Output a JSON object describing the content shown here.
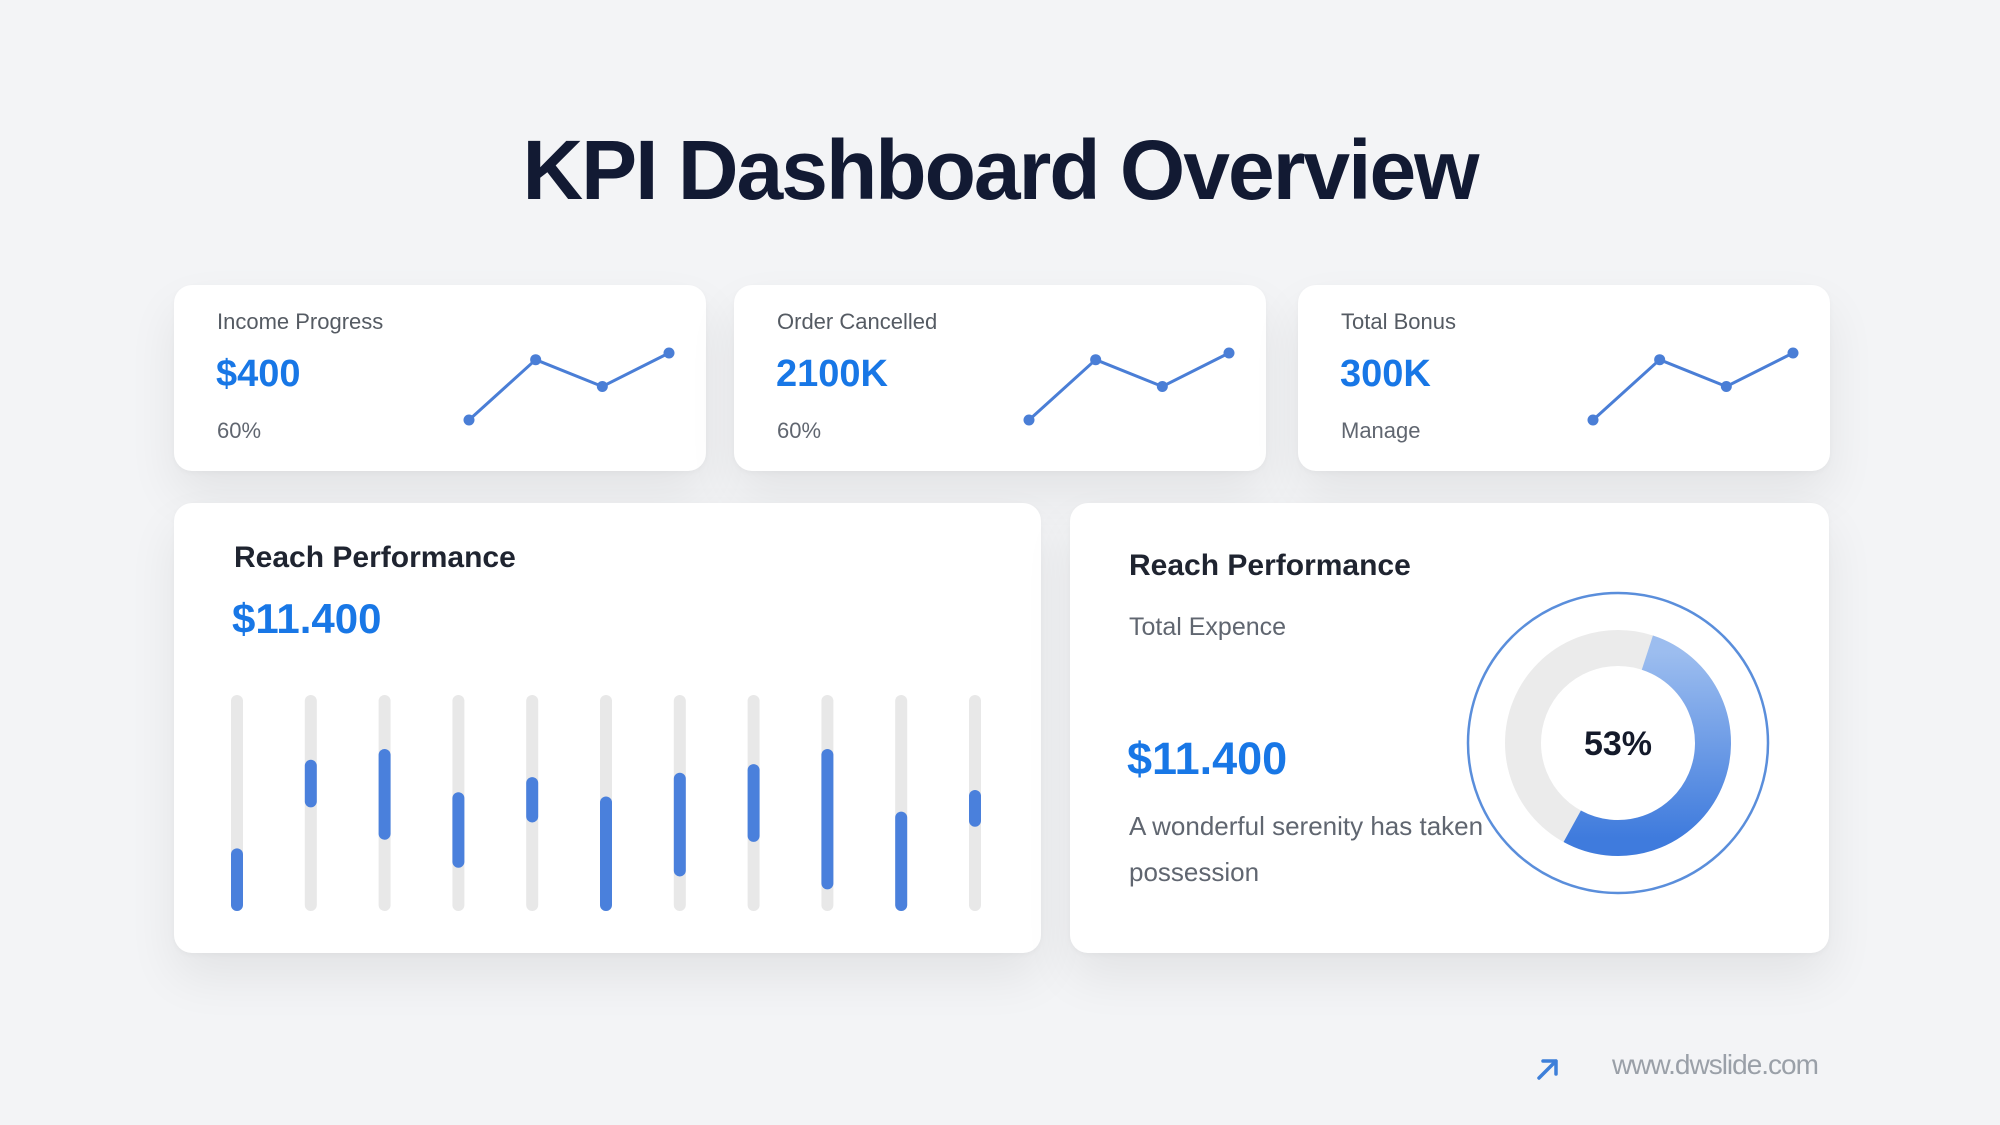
{
  "title": "KPI Dashboard Overview",
  "colors": {
    "accent": "#1877e6",
    "bar": "#4a80dc",
    "track": "#e8e8e8",
    "line": "#4a7ed6"
  },
  "kpis": [
    {
      "label": "Income Progress",
      "value": "$400",
      "sub": "60%",
      "spark": [
        0,
        0.9,
        0.5,
        1
      ]
    },
    {
      "label": "Order Cancelled",
      "value": "2100K",
      "sub": "60%",
      "spark": [
        0,
        0.9,
        0.5,
        1
      ]
    },
    {
      "label": "Total Bonus",
      "value": "300K",
      "sub": "Manage",
      "spark": [
        0,
        0.9,
        0.5,
        1
      ]
    }
  ],
  "reach_left": {
    "title": "Reach Performance",
    "value": "$11.400"
  },
  "chart_data": {
    "type": "bar",
    "title": "Reach Performance",
    "subtitle": "$11.400",
    "ylim": [
      0,
      100
    ],
    "series": [
      {
        "name": "range",
        "ranges": [
          [
            0,
            29
          ],
          [
            48,
            70
          ],
          [
            33,
            75
          ],
          [
            20,
            55
          ],
          [
            41,
            62
          ],
          [
            0,
            53
          ],
          [
            16,
            64
          ],
          [
            32,
            68
          ],
          [
            10,
            75
          ],
          [
            0,
            46
          ],
          [
            39,
            56
          ]
        ]
      }
    ]
  },
  "reach_right": {
    "title": "Reach Performance",
    "subtitle": "Total Expence",
    "value": "$11.400",
    "description": "A wonderful serenity has taken possession",
    "percent_label": "53%",
    "percent": 53
  },
  "footer": {
    "url": "www.dwslide.com",
    "icon": "arrow-up-right-icon"
  }
}
